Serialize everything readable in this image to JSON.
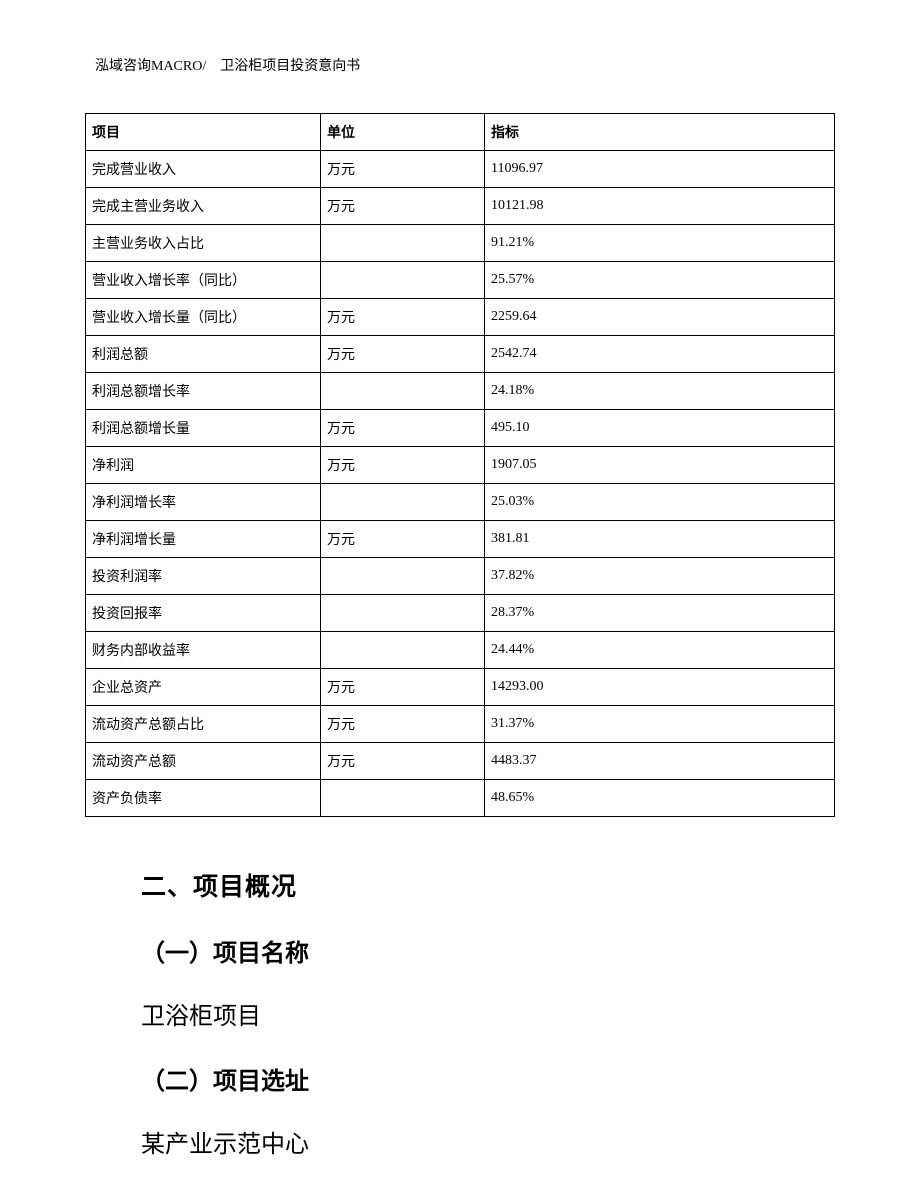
{
  "header": {
    "left": "泓域咨询MACRO/",
    "right": "卫浴柜项目投资意向书"
  },
  "table": {
    "columns": [
      "项目",
      "单位",
      "指标"
    ],
    "rows": [
      [
        "完成营业收入",
        "万元",
        "11096.97"
      ],
      [
        "完成主营业务收入",
        "万元",
        "10121.98"
      ],
      [
        "主营业务收入占比",
        "",
        "91.21%"
      ],
      [
        "营业收入增长率（同比）",
        "",
        "25.57%"
      ],
      [
        "营业收入增长量（同比）",
        "万元",
        "2259.64"
      ],
      [
        "利润总额",
        "万元",
        "2542.74"
      ],
      [
        "利润总额增长率",
        "",
        "24.18%"
      ],
      [
        "利润总额增长量",
        "万元",
        "495.10"
      ],
      [
        "净利润",
        "万元",
        "1907.05"
      ],
      [
        "净利润增长率",
        "",
        "25.03%"
      ],
      [
        "净利润增长量",
        "万元",
        "381.81"
      ],
      [
        "投资利润率",
        "",
        "37.82%"
      ],
      [
        "投资回报率",
        "",
        "28.37%"
      ],
      [
        "财务内部收益率",
        "",
        "24.44%"
      ],
      [
        "企业总资产",
        "万元",
        "14293.00"
      ],
      [
        "流动资产总额占比",
        "万元",
        "31.37%"
      ],
      [
        "流动资产总额",
        "万元",
        "4483.37"
      ],
      [
        "资产负债率",
        "",
        "48.65%"
      ]
    ]
  },
  "body": {
    "section_title": "二、项目概况",
    "sub1_title": "（一）项目名称",
    "sub1_text": "卫浴柜项目",
    "sub2_title": "（二）项目选址",
    "sub2_text": "某产业示范中心"
  }
}
